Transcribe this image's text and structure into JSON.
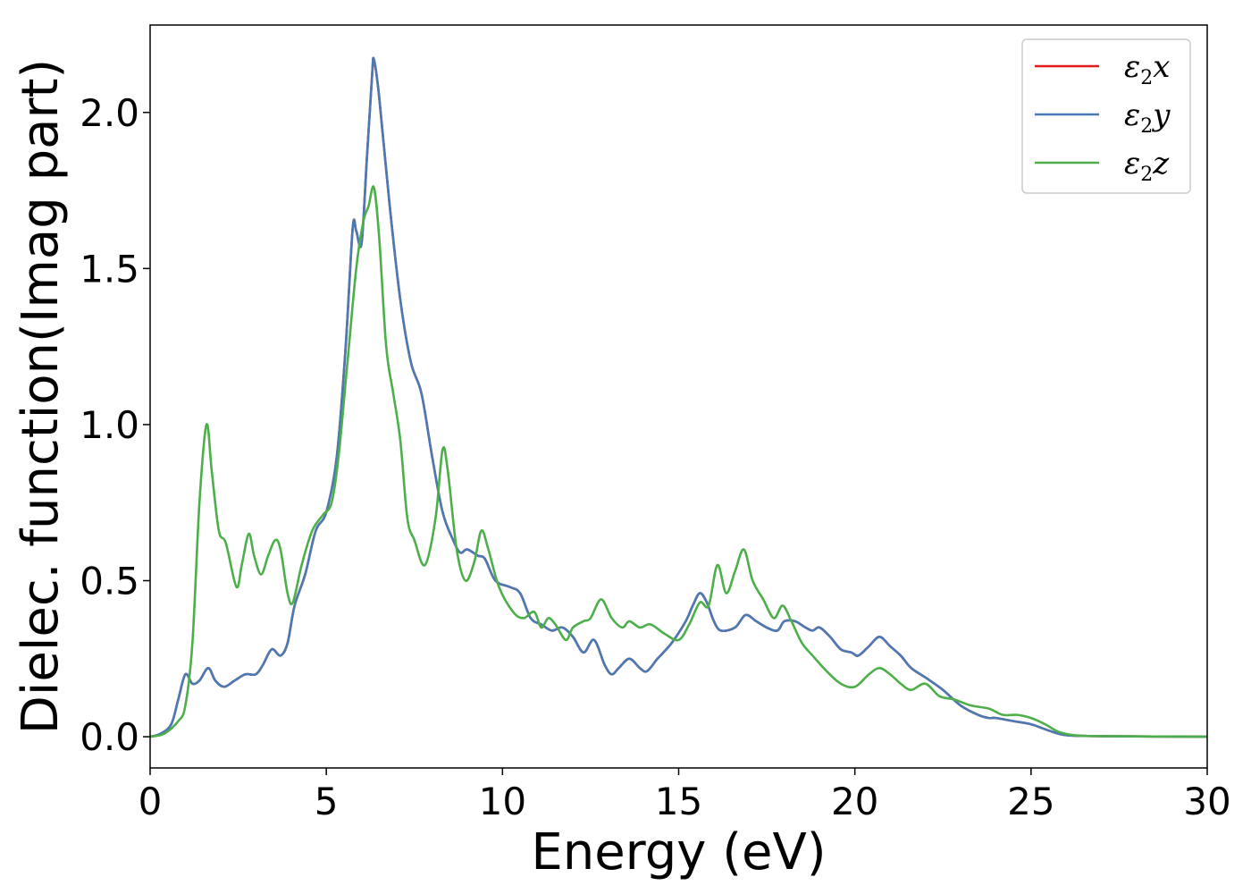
{
  "chart_data": {
    "type": "line",
    "xlabel": "Energy (eV)",
    "ylabel": "Dielec. function(Imag part)",
    "xlim": [
      0,
      30
    ],
    "ylim": [
      -0.1,
      2.28
    ],
    "xticks": [
      0,
      5,
      10,
      15,
      20,
      25,
      30
    ],
    "yticks": [
      0.0,
      0.5,
      1.0,
      1.5,
      2.0
    ],
    "xtick_labels": [
      "0",
      "5",
      "10",
      "15",
      "20",
      "25",
      "30"
    ],
    "ytick_labels": [
      "0.0",
      "0.5",
      "1.0",
      "1.5",
      "2.0"
    ],
    "grid": false,
    "legend_position": "top-right",
    "series": [
      {
        "name": "ε2x",
        "legend_main": "ε",
        "legend_sub": "2",
        "legend_tail": "x",
        "color": "#e41a1c",
        "points": [
          [
            0,
            0
          ],
          [
            0.3,
            0.01
          ],
          [
            0.6,
            0.04
          ],
          [
            0.8,
            0.12
          ],
          [
            1.0,
            0.2
          ],
          [
            1.2,
            0.17
          ],
          [
            1.4,
            0.18
          ],
          [
            1.65,
            0.22
          ],
          [
            1.85,
            0.18
          ],
          [
            2.1,
            0.16
          ],
          [
            2.4,
            0.18
          ],
          [
            2.7,
            0.2
          ],
          [
            3.0,
            0.2
          ],
          [
            3.2,
            0.23
          ],
          [
            3.45,
            0.28
          ],
          [
            3.7,
            0.26
          ],
          [
            3.9,
            0.3
          ],
          [
            4.1,
            0.42
          ],
          [
            4.4,
            0.52
          ],
          [
            4.7,
            0.66
          ],
          [
            5.0,
            0.72
          ],
          [
            5.3,
            0.9
          ],
          [
            5.55,
            1.25
          ],
          [
            5.75,
            1.63
          ],
          [
            5.85,
            1.62
          ],
          [
            6.0,
            1.58
          ],
          [
            6.15,
            1.85
          ],
          [
            6.3,
            2.12
          ],
          [
            6.35,
            2.17
          ],
          [
            6.5,
            2.05
          ],
          [
            6.8,
            1.7
          ],
          [
            7.1,
            1.4
          ],
          [
            7.4,
            1.2
          ],
          [
            7.7,
            1.1
          ],
          [
            8.0,
            0.9
          ],
          [
            8.3,
            0.72
          ],
          [
            8.6,
            0.63
          ],
          [
            8.8,
            0.59
          ],
          [
            9.0,
            0.6
          ],
          [
            9.3,
            0.58
          ],
          [
            9.5,
            0.57
          ],
          [
            9.8,
            0.5
          ],
          [
            10.2,
            0.48
          ],
          [
            10.5,
            0.46
          ],
          [
            10.8,
            0.38
          ],
          [
            11.1,
            0.36
          ],
          [
            11.4,
            0.34
          ],
          [
            11.7,
            0.35
          ],
          [
            12.0,
            0.32
          ],
          [
            12.3,
            0.27
          ],
          [
            12.6,
            0.31
          ],
          [
            12.9,
            0.23
          ],
          [
            13.1,
            0.2
          ],
          [
            13.3,
            0.22
          ],
          [
            13.6,
            0.25
          ],
          [
            13.9,
            0.22
          ],
          [
            14.1,
            0.21
          ],
          [
            14.4,
            0.25
          ],
          [
            14.8,
            0.3
          ],
          [
            15.2,
            0.37
          ],
          [
            15.4,
            0.42
          ],
          [
            15.6,
            0.46
          ],
          [
            15.8,
            0.43
          ],
          [
            16.0,
            0.37
          ],
          [
            16.2,
            0.34
          ],
          [
            16.6,
            0.35
          ],
          [
            16.9,
            0.39
          ],
          [
            17.2,
            0.37
          ],
          [
            17.5,
            0.35
          ],
          [
            17.8,
            0.34
          ],
          [
            18.0,
            0.37
          ],
          [
            18.3,
            0.37
          ],
          [
            18.6,
            0.35
          ],
          [
            18.8,
            0.34
          ],
          [
            19.0,
            0.35
          ],
          [
            19.3,
            0.32
          ],
          [
            19.6,
            0.28
          ],
          [
            19.9,
            0.27
          ],
          [
            20.1,
            0.26
          ],
          [
            20.4,
            0.29
          ],
          [
            20.7,
            0.32
          ],
          [
            21.0,
            0.29
          ],
          [
            21.3,
            0.26
          ],
          [
            21.6,
            0.22
          ],
          [
            22.0,
            0.19
          ],
          [
            22.5,
            0.15
          ],
          [
            23.0,
            0.1
          ],
          [
            23.5,
            0.07
          ],
          [
            23.8,
            0.06
          ],
          [
            24.0,
            0.06
          ],
          [
            24.5,
            0.05
          ],
          [
            25.0,
            0.04
          ],
          [
            25.5,
            0.02
          ],
          [
            26.0,
            0.005
          ],
          [
            27.0,
            0.002
          ],
          [
            30,
            0.0
          ]
        ]
      },
      {
        "name": "ε2y",
        "legend_main": "ε",
        "legend_sub": "2",
        "legend_tail": "y",
        "color": "#4a7ab5",
        "points": [
          [
            0,
            0
          ],
          [
            0.3,
            0.01
          ],
          [
            0.6,
            0.04
          ],
          [
            0.8,
            0.12
          ],
          [
            1.0,
            0.2
          ],
          [
            1.2,
            0.17
          ],
          [
            1.4,
            0.18
          ],
          [
            1.65,
            0.22
          ],
          [
            1.85,
            0.18
          ],
          [
            2.1,
            0.16
          ],
          [
            2.4,
            0.18
          ],
          [
            2.7,
            0.2
          ],
          [
            3.0,
            0.2
          ],
          [
            3.2,
            0.23
          ],
          [
            3.45,
            0.28
          ],
          [
            3.7,
            0.26
          ],
          [
            3.9,
            0.3
          ],
          [
            4.1,
            0.42
          ],
          [
            4.4,
            0.52
          ],
          [
            4.7,
            0.66
          ],
          [
            5.0,
            0.72
          ],
          [
            5.3,
            0.9
          ],
          [
            5.55,
            1.25
          ],
          [
            5.75,
            1.63
          ],
          [
            5.85,
            1.62
          ],
          [
            6.0,
            1.58
          ],
          [
            6.15,
            1.85
          ],
          [
            6.3,
            2.12
          ],
          [
            6.35,
            2.17
          ],
          [
            6.5,
            2.05
          ],
          [
            6.8,
            1.7
          ],
          [
            7.1,
            1.4
          ],
          [
            7.4,
            1.2
          ],
          [
            7.7,
            1.1
          ],
          [
            8.0,
            0.9
          ],
          [
            8.3,
            0.72
          ],
          [
            8.6,
            0.63
          ],
          [
            8.8,
            0.59
          ],
          [
            9.0,
            0.6
          ],
          [
            9.3,
            0.58
          ],
          [
            9.5,
            0.57
          ],
          [
            9.8,
            0.5
          ],
          [
            10.2,
            0.48
          ],
          [
            10.5,
            0.46
          ],
          [
            10.8,
            0.38
          ],
          [
            11.1,
            0.36
          ],
          [
            11.4,
            0.34
          ],
          [
            11.7,
            0.35
          ],
          [
            12.0,
            0.32
          ],
          [
            12.3,
            0.27
          ],
          [
            12.6,
            0.31
          ],
          [
            12.9,
            0.23
          ],
          [
            13.1,
            0.2
          ],
          [
            13.3,
            0.22
          ],
          [
            13.6,
            0.25
          ],
          [
            13.9,
            0.22
          ],
          [
            14.1,
            0.21
          ],
          [
            14.4,
            0.25
          ],
          [
            14.8,
            0.3
          ],
          [
            15.2,
            0.37
          ],
          [
            15.4,
            0.42
          ],
          [
            15.6,
            0.46
          ],
          [
            15.8,
            0.43
          ],
          [
            16.0,
            0.37
          ],
          [
            16.2,
            0.34
          ],
          [
            16.6,
            0.35
          ],
          [
            16.9,
            0.39
          ],
          [
            17.2,
            0.37
          ],
          [
            17.5,
            0.35
          ],
          [
            17.8,
            0.34
          ],
          [
            18.0,
            0.37
          ],
          [
            18.3,
            0.37
          ],
          [
            18.6,
            0.35
          ],
          [
            18.8,
            0.34
          ],
          [
            19.0,
            0.35
          ],
          [
            19.3,
            0.32
          ],
          [
            19.6,
            0.28
          ],
          [
            19.9,
            0.27
          ],
          [
            20.1,
            0.26
          ],
          [
            20.4,
            0.29
          ],
          [
            20.7,
            0.32
          ],
          [
            21.0,
            0.29
          ],
          [
            21.3,
            0.26
          ],
          [
            21.6,
            0.22
          ],
          [
            22.0,
            0.19
          ],
          [
            22.5,
            0.15
          ],
          [
            23.0,
            0.1
          ],
          [
            23.5,
            0.07
          ],
          [
            23.8,
            0.06
          ],
          [
            24.0,
            0.06
          ],
          [
            24.5,
            0.05
          ],
          [
            25.0,
            0.04
          ],
          [
            25.5,
            0.02
          ],
          [
            26.0,
            0.005
          ],
          [
            27.0,
            0.002
          ],
          [
            30,
            0.0
          ]
        ]
      },
      {
        "name": "ε2z",
        "legend_main": "ε",
        "legend_sub": "2",
        "legend_tail": "z",
        "color": "#4daf4a",
        "points": [
          [
            0,
            0
          ],
          [
            0.4,
            0.01
          ],
          [
            0.8,
            0.05
          ],
          [
            1.0,
            0.1
          ],
          [
            1.2,
            0.3
          ],
          [
            1.4,
            0.75
          ],
          [
            1.6,
            1.0
          ],
          [
            1.75,
            0.85
          ],
          [
            1.95,
            0.66
          ],
          [
            2.15,
            0.62
          ],
          [
            2.45,
            0.48
          ],
          [
            2.6,
            0.55
          ],
          [
            2.8,
            0.65
          ],
          [
            2.95,
            0.58
          ],
          [
            3.15,
            0.52
          ],
          [
            3.35,
            0.58
          ],
          [
            3.55,
            0.63
          ],
          [
            3.7,
            0.6
          ],
          [
            3.9,
            0.46
          ],
          [
            4.05,
            0.43
          ],
          [
            4.3,
            0.55
          ],
          [
            4.6,
            0.66
          ],
          [
            4.9,
            0.71
          ],
          [
            5.15,
            0.75
          ],
          [
            5.35,
            0.9
          ],
          [
            5.6,
            1.2
          ],
          [
            5.85,
            1.5
          ],
          [
            6.05,
            1.65
          ],
          [
            6.2,
            1.7
          ],
          [
            6.35,
            1.76
          ],
          [
            6.5,
            1.6
          ],
          [
            6.7,
            1.25
          ],
          [
            6.9,
            1.1
          ],
          [
            7.1,
            0.95
          ],
          [
            7.3,
            0.7
          ],
          [
            7.5,
            0.63
          ],
          [
            7.8,
            0.55
          ],
          [
            8.1,
            0.7
          ],
          [
            8.3,
            0.92
          ],
          [
            8.45,
            0.85
          ],
          [
            8.7,
            0.6
          ],
          [
            8.95,
            0.5
          ],
          [
            9.2,
            0.56
          ],
          [
            9.4,
            0.66
          ],
          [
            9.6,
            0.6
          ],
          [
            9.9,
            0.48
          ],
          [
            10.3,
            0.4
          ],
          [
            10.6,
            0.38
          ],
          [
            10.9,
            0.4
          ],
          [
            11.1,
            0.35
          ],
          [
            11.3,
            0.38
          ],
          [
            11.5,
            0.36
          ],
          [
            11.8,
            0.31
          ],
          [
            12.0,
            0.35
          ],
          [
            12.3,
            0.37
          ],
          [
            12.5,
            0.38
          ],
          [
            12.8,
            0.44
          ],
          [
            13.1,
            0.38
          ],
          [
            13.4,
            0.35
          ],
          [
            13.6,
            0.37
          ],
          [
            13.9,
            0.35
          ],
          [
            14.2,
            0.36
          ],
          [
            14.6,
            0.33
          ],
          [
            15.0,
            0.31
          ],
          [
            15.3,
            0.36
          ],
          [
            15.6,
            0.43
          ],
          [
            15.85,
            0.42
          ],
          [
            16.1,
            0.55
          ],
          [
            16.35,
            0.46
          ],
          [
            16.6,
            0.53
          ],
          [
            16.85,
            0.6
          ],
          [
            17.1,
            0.5
          ],
          [
            17.4,
            0.44
          ],
          [
            17.7,
            0.38
          ],
          [
            17.95,
            0.42
          ],
          [
            18.2,
            0.37
          ],
          [
            18.5,
            0.3
          ],
          [
            18.8,
            0.26
          ],
          [
            19.2,
            0.21
          ],
          [
            19.6,
            0.17
          ],
          [
            20.0,
            0.16
          ],
          [
            20.4,
            0.2
          ],
          [
            20.7,
            0.22
          ],
          [
            21.0,
            0.2
          ],
          [
            21.3,
            0.17
          ],
          [
            21.6,
            0.15
          ],
          [
            22.0,
            0.17
          ],
          [
            22.4,
            0.13
          ],
          [
            22.8,
            0.12
          ],
          [
            23.3,
            0.1
          ],
          [
            23.8,
            0.09
          ],
          [
            24.2,
            0.07
          ],
          [
            24.6,
            0.07
          ],
          [
            25.0,
            0.06
          ],
          [
            25.4,
            0.04
          ],
          [
            25.8,
            0.015
          ],
          [
            26.3,
            0.004
          ],
          [
            27.0,
            0.002
          ],
          [
            30,
            0.0
          ]
        ]
      }
    ]
  }
}
